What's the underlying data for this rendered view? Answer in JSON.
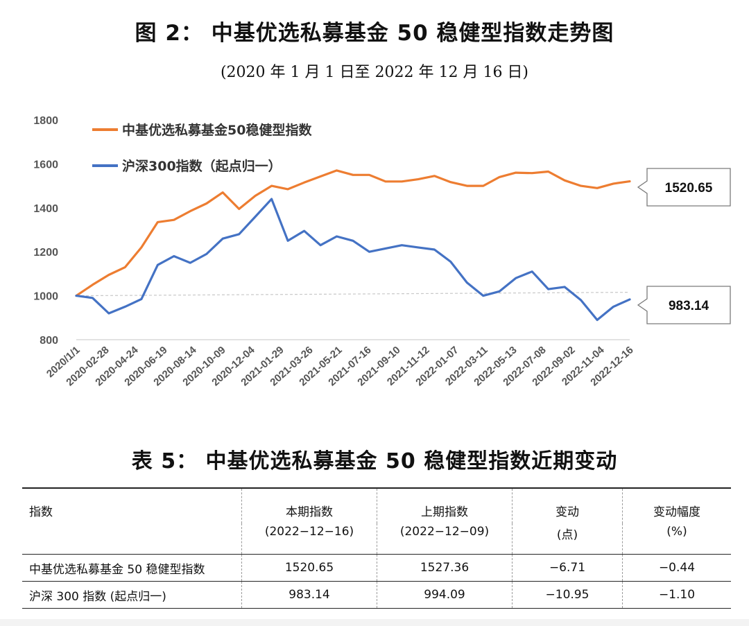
{
  "figure": {
    "title": "图 2： 中基优选私募基金 50 稳健型指数走势图",
    "subtitle": "(2020 年 1 月 1 日至 2022 年 12 月 16 日)"
  },
  "chart_data": {
    "type": "line",
    "title": "",
    "xlabel": "",
    "ylabel": "",
    "ylim": [
      800,
      1800
    ],
    "yticks": [
      800,
      1000,
      1200,
      1400,
      1600,
      1800
    ],
    "x_tick_labels": [
      "2020/1/1",
      "2020-02-28",
      "2020-04-24",
      "2020-06-19",
      "2020-08-14",
      "2020-10-09",
      "2020-12-04",
      "2021-01-29",
      "2021-03-26",
      "2021-05-21",
      "2021-07-16",
      "2021-09-10",
      "2021-11-12",
      "2022-01-07",
      "2022-03-11",
      "2022-05-13",
      "2022-07-08",
      "2022-09-02",
      "2022-11-04",
      "2022-12-16"
    ],
    "grid": false,
    "legend_position": "top-left",
    "reference_line": 1000,
    "series": [
      {
        "name": "中基优选私募基金50稳健型指数",
        "color": "#ed7d31",
        "values": [
          1000,
          1050,
          1095,
          1130,
          1220,
          1335,
          1345,
          1385,
          1420,
          1470,
          1395,
          1455,
          1500,
          1485,
          1515,
          1543,
          1570,
          1550,
          1550,
          1520,
          1520,
          1530,
          1545,
          1517,
          1500,
          1500,
          1540,
          1560,
          1558,
          1565,
          1525,
          1500,
          1490,
          1510,
          1520.65
        ],
        "end_label": "1520.65"
      },
      {
        "name": "沪深300指数（起点归一）",
        "color": "#4472c4",
        "values": [
          1000,
          990,
          920,
          950,
          985,
          1140,
          1180,
          1150,
          1190,
          1260,
          1280,
          1360,
          1440,
          1250,
          1295,
          1230,
          1270,
          1250,
          1200,
          1215,
          1230,
          1220,
          1210,
          1155,
          1060,
          1000,
          1020,
          1080,
          1110,
          1030,
          1040,
          980,
          890,
          950,
          983.14
        ],
        "end_label": "983.14"
      }
    ]
  },
  "table": {
    "title": "表 5： 中基优选私募基金 50 稳健型指数近期变动",
    "columns": [
      {
        "label": "指数",
        "sub": ""
      },
      {
        "label": "本期指数",
        "sub": "(2022−12−16)"
      },
      {
        "label": "上期指数",
        "sub": "(2022−12−09)"
      },
      {
        "label": "变动",
        "sub": "(点)"
      },
      {
        "label": "变动幅度",
        "sub": "(%)"
      }
    ],
    "rows": [
      {
        "name": "中基优选私募基金 50 稳健型指数",
        "current": "1520.65",
        "previous": "1527.36",
        "change": "−6.71",
        "pct": "−0.44"
      },
      {
        "name": "沪深 300 指数 (起点归一)",
        "current": "983.14",
        "previous": "994.09",
        "change": "−10.95",
        "pct": "−1.10"
      }
    ]
  }
}
